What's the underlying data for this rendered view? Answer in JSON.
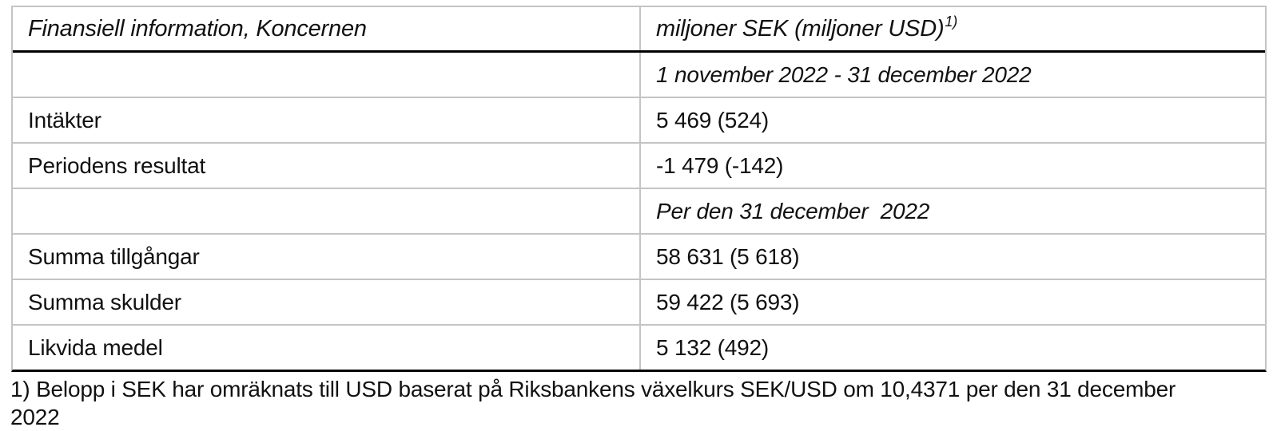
{
  "table": {
    "header": {
      "col1": "Finansiell information, Koncernen",
      "col2_main": "miljoner SEK (miljoner USD)",
      "col2_sup": "1)"
    },
    "rows": [
      {
        "label": "",
        "value": "1 november 2022 - 31 december 2022"
      },
      {
        "label": "Intäkter",
        "value": "5 469 (524)"
      },
      {
        "label": "Periodens resultat",
        "value": "-1 479 (-142)"
      },
      {
        "label": "",
        "value": "Per den 31 december  2022"
      },
      {
        "label": "Summa tillgångar",
        "value": "58 631 (5 618)"
      },
      {
        "label": "Summa skulder",
        "value": "59 422 (5 693)"
      },
      {
        "label": "Likvida medel",
        "value": "5 132 (492)"
      }
    ]
  },
  "footnote": "1) Belopp i SEK har omräknats till USD baserat på Riksbankens växelkurs SEK/USD om 10,4371 per den 31 december 2022",
  "colors": {
    "text": "#111111",
    "grid_line": "#c4c4c4",
    "strong_line": "#000000",
    "background": "#ffffff"
  }
}
